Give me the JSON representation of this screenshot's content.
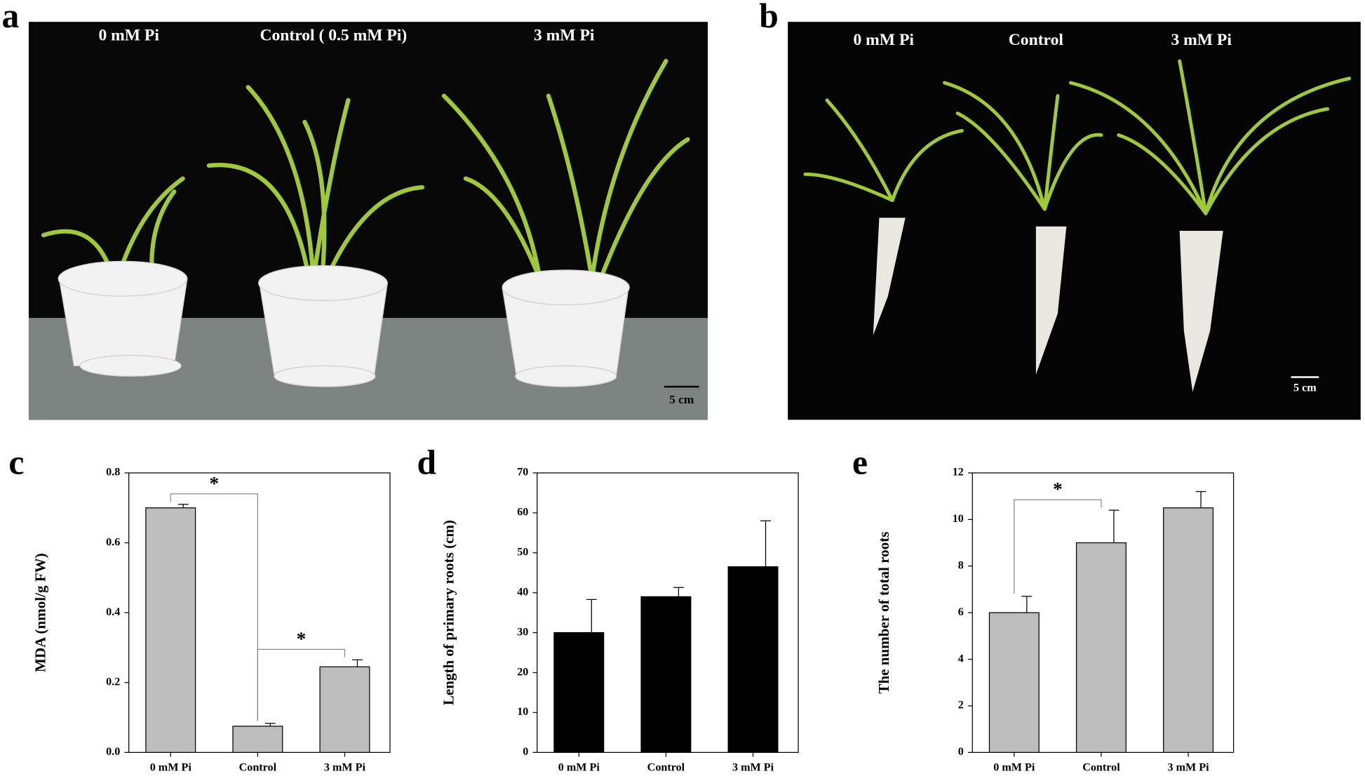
{
  "panels": {
    "a": {
      "letter": "a",
      "labels": [
        "0 mM Pi",
        "Control ( 0.5 mM Pi)",
        "3 mM Pi"
      ],
      "scale": "5 cm"
    },
    "b": {
      "letter": "b",
      "labels": [
        "0 mM Pi",
        "Control",
        "3 mM Pi"
      ],
      "scale": "5 cm"
    }
  },
  "chart_data": [
    {
      "type": "bar",
      "letter": "c",
      "ylabel": "MDA (nmol/g FW)",
      "categories": [
        "0 mM Pi",
        "Control",
        "3 mM Pi"
      ],
      "values": [
        0.7,
        0.075,
        0.245
      ],
      "errors": [
        0.01,
        0.008,
        0.02
      ],
      "color": "#bdbdbd",
      "ylim": [
        0,
        0.8
      ],
      "yticks": [
        {
          "value": 0,
          "label": "0.0"
        },
        0.2,
        0.4,
        0.6,
        0.8
      ],
      "annotations": [
        {
          "text": "*",
          "from": 0,
          "to": 1
        },
        {
          "text": "*",
          "from": 1,
          "to": 2
        }
      ]
    },
    {
      "type": "bar",
      "letter": "d",
      "ylabel": "Length of primary roots (cm)",
      "categories": [
        "0 mM Pi",
        "Control",
        "3 mM Pi"
      ],
      "values": [
        30,
        39,
        46.5
      ],
      "errors": [
        8.3,
        2.3,
        11.5
      ],
      "color": "#000000",
      "ylim": [
        0,
        70
      ],
      "yticks": [
        0,
        10,
        20,
        30,
        40,
        50,
        60,
        70
      ],
      "annotations": []
    },
    {
      "type": "bar",
      "letter": "e",
      "ylabel": "The number of total roots",
      "categories": [
        "0 mM Pi",
        "Control",
        "3 mM Pi"
      ],
      "values": [
        6,
        9,
        10.5
      ],
      "errors": [
        0.7,
        1.4,
        0.7
      ],
      "color": "#bdbdbd",
      "ylim": [
        0,
        12
      ],
      "yticks": [
        0,
        2,
        4,
        6,
        8,
        10,
        12
      ],
      "annotations": [
        {
          "text": "*",
          "from": 0,
          "to": 1
        }
      ]
    }
  ]
}
